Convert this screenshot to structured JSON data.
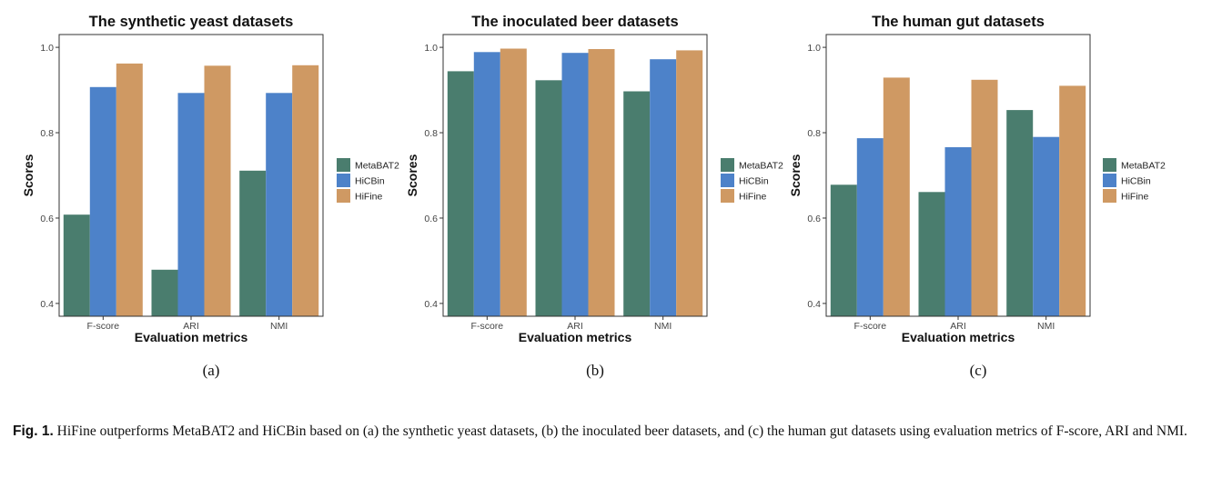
{
  "colors": {
    "MetaBAT2": "#4a7d6e",
    "HiCBin": "#4d82c9",
    "HiFine": "#cf9963"
  },
  "chart_data": [
    {
      "type": "bar",
      "title": "The synthetic yeast datasets",
      "xlabel": "Evaluation metrics",
      "ylabel": "Scores",
      "categories": [
        "F-score",
        "ARI",
        "NMI"
      ],
      "ylim": [
        0.37,
        1.03
      ],
      "yticks": [
        0.4,
        0.6,
        0.8,
        1.0
      ],
      "ytick_labels": [
        "0.4",
        "0.6",
        "0.8",
        "1.0"
      ],
      "series": [
        {
          "name": "MetaBAT2",
          "values": [
            0.608,
            0.479,
            0.711
          ]
        },
        {
          "name": "HiCBin",
          "values": [
            0.907,
            0.893,
            0.893
          ]
        },
        {
          "name": "HiFine",
          "values": [
            0.962,
            0.957,
            0.958
          ]
        }
      ],
      "legend": "right",
      "panel_label": "(a)"
    },
    {
      "type": "bar",
      "title": "The inoculated beer datasets",
      "xlabel": "Evaluation metrics",
      "ylabel": "Scores",
      "categories": [
        "F-score",
        "ARI",
        "NMI"
      ],
      "ylim": [
        0.37,
        1.03
      ],
      "yticks": [
        0.4,
        0.6,
        0.8,
        1.0
      ],
      "ytick_labels": [
        "0.4",
        "0.6",
        "0.8",
        "1.0"
      ],
      "series": [
        {
          "name": "MetaBAT2",
          "values": [
            0.944,
            0.923,
            0.897
          ]
        },
        {
          "name": "HiCBin",
          "values": [
            0.989,
            0.987,
            0.972
          ]
        },
        {
          "name": "HiFine",
          "values": [
            0.997,
            0.996,
            0.993
          ]
        }
      ],
      "legend": "right",
      "panel_label": "(b)"
    },
    {
      "type": "bar",
      "title": "The human gut datasets",
      "xlabel": "Evaluation metrics",
      "ylabel": "Scores",
      "categories": [
        "F-score",
        "ARI",
        "NMI"
      ],
      "ylim": [
        0.37,
        1.03
      ],
      "yticks": [
        0.4,
        0.6,
        0.8,
        1.0
      ],
      "ytick_labels": [
        "0.4",
        "0.6",
        "0.8",
        "1.0"
      ],
      "series": [
        {
          "name": "MetaBAT2",
          "values": [
            0.678,
            0.661,
            0.853
          ]
        },
        {
          "name": "HiCBin",
          "values": [
            0.787,
            0.766,
            0.79
          ]
        },
        {
          "name": "HiFine",
          "values": [
            0.929,
            0.924,
            0.91
          ]
        }
      ],
      "legend": "right",
      "panel_label": "(c)"
    }
  ],
  "caption": {
    "label": "Fig. 1.",
    "text": " HiFine outperforms MetaBAT2 and HiCBin based on (a) the synthetic yeast datasets, (b) the inoculated beer datasets, and (c) the human gut datasets using evaluation metrics of F-score, ARI and NMI."
  }
}
